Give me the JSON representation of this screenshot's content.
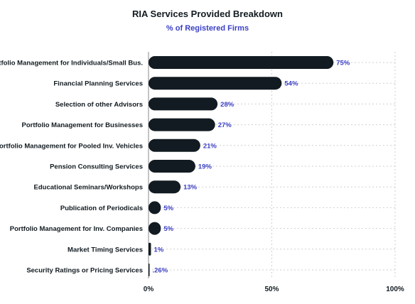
{
  "colors": {
    "bar": "#121b21",
    "label": "#3b3fc4",
    "text": "#121b21",
    "grid": "#cfcfcf"
  },
  "chart_data": {
    "type": "bar",
    "orientation": "horizontal",
    "title": "RIA Services Provided Breakdown",
    "subtitle": "% of Registered Firms",
    "xlabel": "",
    "ylabel": "",
    "xlim": [
      0,
      100
    ],
    "x_ticks": [
      0,
      50,
      100
    ],
    "x_tick_labels": [
      "0%",
      "50%",
      "100%"
    ],
    "grid": true,
    "categories": [
      "Portfolio Management for Individuals/Small Bus.",
      "Financial Planning Services",
      "Selection of other Advisors",
      "Portfolio Management for Businesses",
      "Portfolio Management for Pooled Inv. Vehicles",
      "Pension Consulting Services",
      "Educational Seminars/Workshops",
      "Publication of Periodicals",
      "Portfolio Management for Inv. Companies",
      "Market Timing Services",
      "Security Ratings or Pricing Services"
    ],
    "values": [
      75,
      54,
      28,
      27,
      21,
      19,
      13,
      5,
      5,
      1,
      0.26
    ],
    "data_labels": [
      "75%",
      "54%",
      "28%",
      "27%",
      "21%",
      "19%",
      "13%",
      "5%",
      "5%",
      "1%",
      ".26%"
    ]
  }
}
